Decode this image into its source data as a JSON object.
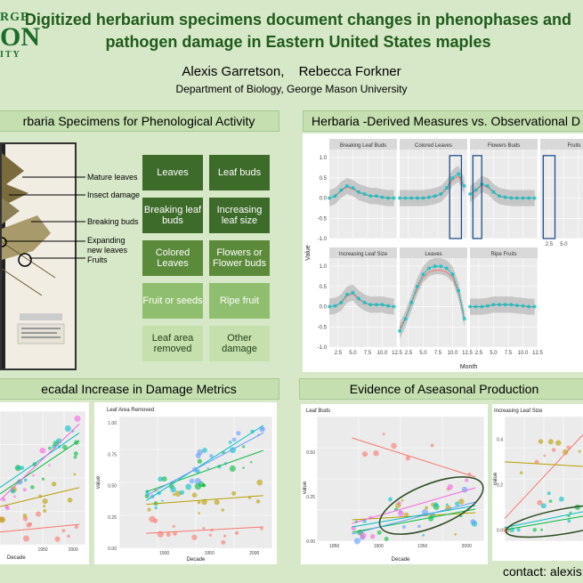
{
  "poster": {
    "title_line1": "Digitized herbarium specimens document changes in phenophases and",
    "title_line2": "pathogen damage in Eastern United States maples",
    "author1": "Alexis Garretson,",
    "author2": "Rebecca Forkner",
    "affiliation": "Department of Biology, George Mason University",
    "logo": [
      "RGE",
      "ON",
      "ITY"
    ],
    "contact": "contact: alexis@"
  },
  "sections": {
    "specimens": "rbaria Specimens for Phenological Activity",
    "measures": "Herbaria -Derived Measures vs. Observational D",
    "damage": "ecadal Increase in Damage Metrics",
    "aseasonal": "Evidence of Aseasonal Production"
  },
  "specimen_labels": [
    "Mature leaves",
    "Insect damage",
    "Breaking buds",
    "Expanding",
    "new leaves",
    "Fruits"
  ],
  "categories": [
    [
      "Leaves",
      "Leaf buds"
    ],
    [
      "Breaking leaf buds",
      "Increasing leaf size"
    ],
    [
      "Colored Leaves",
      "Flowers or Flower buds"
    ],
    [
      "Fruit or seeds",
      "Ripe fruit"
    ],
    [
      "Leaf area removed",
      "Other damage"
    ]
  ],
  "facets": {
    "row1": [
      "Breaking Leaf Buds",
      "Colored Leaves",
      "Flowers Buds",
      "Fruits"
    ],
    "row2": [
      "Increasing Leaf Size",
      "Leaves",
      "Ripe Fruits"
    ],
    "yticks": [
      "1.0",
      "0.5",
      "0.0",
      "-0.5",
      "-1.0"
    ],
    "xticks": [
      "2.5",
      "5.0",
      "7.5",
      "10.0",
      "12.5"
    ],
    "xlabel": "Month",
    "ylabel": "Value"
  },
  "damage_plots": {
    "left_xticks": [
      "1950",
      "2000"
    ],
    "left_xlabel": "Decade",
    "right_title": "Leaf Area Removed",
    "right_xticks": [
      "1900",
      "1950",
      "2000"
    ],
    "right_yticks": [
      "1.00",
      "0.75",
      "0.50",
      "0.25",
      "0.00"
    ],
    "right_xlabel": "Decade",
    "right_ylabel": "value"
  },
  "aseasonal_plots": {
    "left_title": "Leaf Buds",
    "left_xticks": [
      "1850",
      "1900",
      "1950",
      "2000"
    ],
    "left_yticks": [
      "0.50",
      "0.25",
      "0.00"
    ],
    "left_xlabel": "Decade",
    "left_ylabel": "value",
    "right_title": "Increasing Leaf Size",
    "right_yticks": [
      "0.4",
      "0.2",
      "0.0"
    ],
    "right_ylabel": "value"
  },
  "chart_data": [
    {
      "type": "line",
      "title": "Herbaria -Derived Measures vs. Observational D",
      "xlabel": "Month",
      "ylabel": "Value",
      "xlim": [
        1,
        12.5
      ],
      "ylim": [
        -1.0,
        1.2
      ],
      "facets": [
        {
          "name": "Breaking Leaf Buds",
          "x": [
            1,
            2,
            3,
            4,
            5,
            6,
            7,
            8,
            9,
            10,
            11,
            12
          ],
          "values": [
            0.0,
            0.05,
            0.2,
            0.3,
            0.25,
            0.15,
            0.1,
            0.05,
            0.05,
            0.02,
            0.0,
            0.0
          ]
        },
        {
          "name": "Colored Leaves",
          "x": [
            1,
            2,
            3,
            4,
            5,
            6,
            7,
            8,
            9,
            10,
            11,
            12
          ],
          "values": [
            0.0,
            0.0,
            0.0,
            0.0,
            0.0,
            0.02,
            0.05,
            0.1,
            0.25,
            0.5,
            0.6,
            0.3
          ]
        },
        {
          "name": "Flowers Buds",
          "x": [
            1,
            2,
            3,
            4,
            5,
            6,
            7,
            8,
            9,
            10,
            11,
            12
          ],
          "values": [
            0.1,
            0.2,
            0.35,
            0.3,
            0.15,
            0.05,
            0.02,
            0.0,
            0.0,
            0.0,
            0.0,
            0.0
          ]
        },
        {
          "name": "Increasing Leaf Size",
          "x": [
            1,
            2,
            3,
            4,
            5,
            6,
            7,
            8,
            9,
            10,
            11,
            12
          ],
          "values": [
            0.0,
            0.02,
            0.1,
            0.3,
            0.35,
            0.2,
            0.1,
            0.05,
            0.05,
            0.05,
            0.02,
            0.0
          ]
        },
        {
          "name": "Leaves",
          "x": [
            1,
            2,
            3,
            4,
            5,
            6,
            7,
            8,
            9,
            10,
            11,
            12
          ],
          "values": [
            -0.6,
            -0.3,
            0.1,
            0.5,
            0.8,
            0.95,
            1.0,
            1.0,
            0.95,
            0.8,
            0.4,
            -0.3
          ]
        },
        {
          "name": "Ripe Fruits",
          "x": [
            1,
            2,
            3,
            4,
            5,
            6,
            7,
            8,
            9,
            10,
            11,
            12
          ],
          "values": [
            0.0,
            0.0,
            0.0,
            0.02,
            0.05,
            0.05,
            0.05,
            0.05,
            0.03,
            0.02,
            0.0,
            0.0
          ]
        }
      ]
    },
    {
      "type": "scatter",
      "title": "Leaf Area Removed",
      "xlabel": "Decade",
      "ylabel": "value",
      "xlim": [
        1850,
        2020
      ],
      "ylim": [
        0.0,
        1.05
      ],
      "series": [
        {
          "name": "",
          "color": "#f8766d",
          "line": [
            [
              1880,
              0.12
            ],
            [
              2010,
              0.17
            ]
          ]
        },
        {
          "name": "",
          "color": "#b79f00",
          "line": [
            [
              1880,
              0.35
            ],
            [
              2010,
              0.42
            ]
          ]
        },
        {
          "name": "",
          "color": "#00ba38",
          "line": [
            [
              1880,
              0.45
            ],
            [
              2010,
              0.78
            ]
          ]
        },
        {
          "name": "",
          "color": "#00bfc4",
          "line": [
            [
              1880,
              0.38
            ],
            [
              2010,
              0.98
            ]
          ]
        },
        {
          "name": "",
          "color": "#619cff",
          "line": [
            [
              1880,
              0.42
            ],
            [
              2010,
              0.92
            ]
          ]
        }
      ]
    }
  ]
}
